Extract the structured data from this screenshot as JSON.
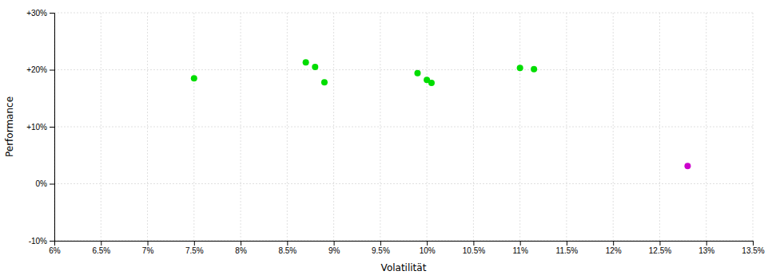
{
  "chart_data": {
    "type": "scatter",
    "xlabel": "Volatilität",
    "ylabel": "Performance",
    "xlim": [
      0.06,
      0.135
    ],
    "ylim": [
      -0.1,
      0.3
    ],
    "xticks": [
      {
        "value": 0.06,
        "label": "6%"
      },
      {
        "value": 0.065,
        "label": "6.5%"
      },
      {
        "value": 0.07,
        "label": "7%"
      },
      {
        "value": 0.075,
        "label": "7.5%"
      },
      {
        "value": 0.08,
        "label": "8%"
      },
      {
        "value": 0.085,
        "label": "8.5%"
      },
      {
        "value": 0.09,
        "label": "9%"
      },
      {
        "value": 0.095,
        "label": "9.5%"
      },
      {
        "value": 0.1,
        "label": "10%"
      },
      {
        "value": 0.105,
        "label": "10.5%"
      },
      {
        "value": 0.11,
        "label": "11%"
      },
      {
        "value": 0.115,
        "label": "11.5%"
      },
      {
        "value": 0.12,
        "label": "12%"
      },
      {
        "value": 0.125,
        "label": "12.5%"
      },
      {
        "value": 0.13,
        "label": "13%"
      },
      {
        "value": 0.135,
        "label": "13.5%"
      }
    ],
    "yticks": [
      {
        "value": -0.1,
        "label": "-10%"
      },
      {
        "value": 0.0,
        "label": "0%"
      },
      {
        "value": 0.1,
        "label": "+10%"
      },
      {
        "value": 0.2,
        "label": "+20%"
      },
      {
        "value": 0.3,
        "label": "+30%"
      }
    ],
    "grid": true,
    "series": [
      {
        "color": "#00dd00",
        "x": [
          0.075,
          0.087,
          0.088,
          0.089,
          0.099,
          0.1,
          0.1005,
          0.11,
          0.1115
        ],
        "values": [
          0.185,
          0.213,
          0.205,
          0.178,
          0.194,
          0.182,
          0.177,
          0.203,
          0.201
        ]
      },
      {
        "color": "#cc00cc",
        "x": [
          0.128
        ],
        "values": [
          0.031
        ]
      }
    ]
  }
}
